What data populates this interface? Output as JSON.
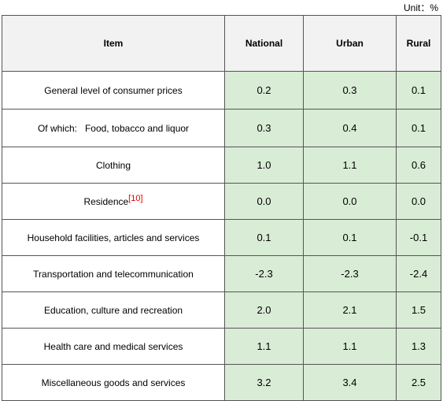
{
  "unit_label": "Unit：%",
  "headers": {
    "item": "Item",
    "national": "National",
    "urban": "Urban",
    "rural": "Rural"
  },
  "rows": [
    {
      "item": "General level of consumer prices",
      "national": "0.2",
      "urban": "0.3",
      "rural": "0.1"
    },
    {
      "item": "Of which:   Food, tobacco and liquor",
      "national": "0.3",
      "urban": "0.4",
      "rural": "0.1"
    },
    {
      "item": "Clothing",
      "national": "1.0",
      "urban": "1.1",
      "rural": "0.6"
    },
    {
      "item": "Residence",
      "note": "[10]",
      "national": "0.0",
      "urban": "0.0",
      "rural": "0.0"
    },
    {
      "item": "Household facilities, articles and services",
      "national": "0.1",
      "urban": "0.1",
      "rural": "-0.1"
    },
    {
      "item": "Transportation and telecommunication",
      "national": "-2.3",
      "urban": "-2.3",
      "rural": "-2.4"
    },
    {
      "item": "Education, culture and recreation",
      "national": "2.0",
      "urban": "2.1",
      "rural": "1.5"
    },
    {
      "item": "Health care and medical services",
      "national": "1.1",
      "urban": "1.1",
      "rural": "1.3"
    },
    {
      "item": "Miscellaneous goods and services",
      "national": "3.2",
      "urban": "3.4",
      "rural": "2.5"
    }
  ]
}
